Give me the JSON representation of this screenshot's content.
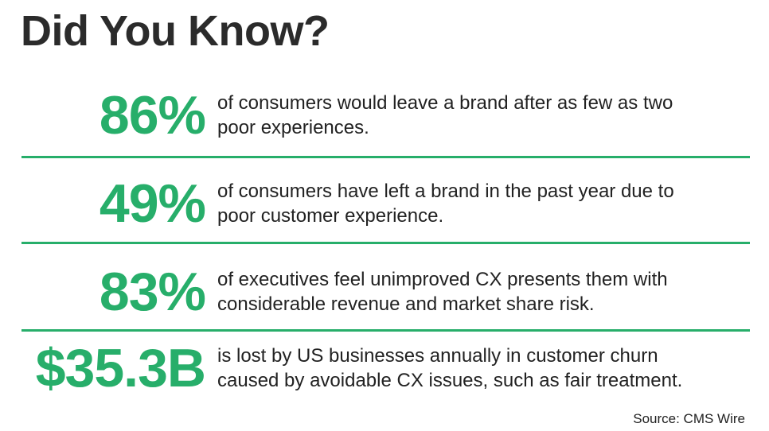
{
  "title": "Did You Know?",
  "stats": [
    {
      "figure": "86%",
      "description": [
        "of consumers would leave a brand after as few as two",
        "poor experiences."
      ]
    },
    {
      "figure": "49%",
      "description": [
        "of consumers have left a brand in the past year due to",
        "poor customer experience."
      ]
    },
    {
      "figure": "83%",
      "description": [
        "of executives feel unimproved CX presents them with",
        "considerable revenue and market share risk."
      ]
    },
    {
      "figure": "$35.3B",
      "description": [
        "is lost by US businesses annually in customer churn",
        "caused by avoidable CX issues, such as fair treatment."
      ]
    }
  ],
  "source": "Source: CMS Wire"
}
